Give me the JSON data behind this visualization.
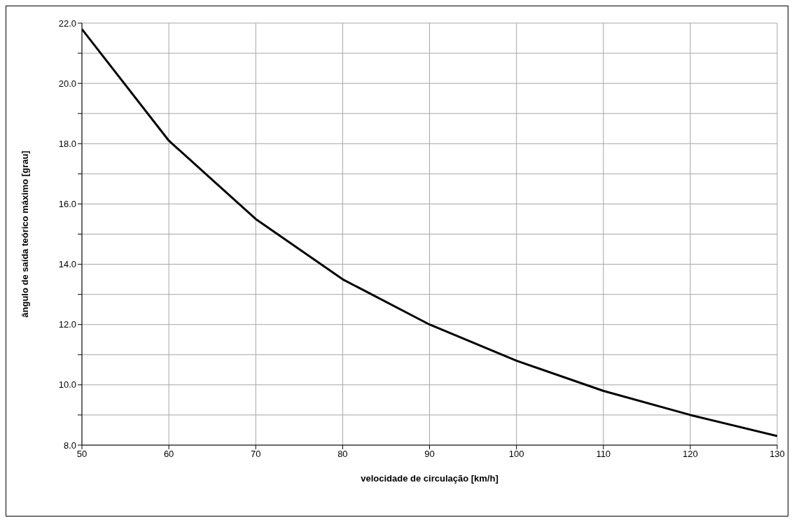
{
  "chart_data": {
    "type": "line",
    "xlabel": "velocidade de circulação [km/h]",
    "ylabel": "ângulo de saída teórico máximo [grau]",
    "x": [
      50,
      60,
      70,
      80,
      90,
      100,
      110,
      120,
      130
    ],
    "series": [
      {
        "color": "#000000",
        "values": [
          21.8,
          18.1,
          15.5,
          13.5,
          12.0,
          10.8,
          9.8,
          9.0,
          8.3
        ]
      }
    ],
    "xlim": [
      50,
      130
    ],
    "xticks": [
      50,
      60,
      70,
      80,
      90,
      100,
      110,
      120,
      130
    ],
    "ylim": [
      8,
      22
    ],
    "yticks": [
      {
        "value": 8,
        "label": "8.0"
      },
      {
        "value": 9,
        "label": null
      },
      {
        "value": 10,
        "label": "10.0"
      },
      {
        "value": 11,
        "label": null
      },
      {
        "value": 12,
        "label": "12.0"
      },
      {
        "value": 13,
        "label": null
      },
      {
        "value": 14,
        "label": "14.0"
      },
      {
        "value": 15,
        "label": null
      },
      {
        "value": 16,
        "label": "16.0"
      },
      {
        "value": 17,
        "label": null
      },
      {
        "value": 18,
        "label": "18.0"
      },
      {
        "value": 19,
        "label": null
      },
      {
        "value": 20,
        "label": "20.0"
      },
      {
        "value": 21,
        "label": null
      },
      {
        "value": 22,
        "label": "22.0"
      }
    ],
    "grid": true,
    "marker": "none",
    "line_style": "solid",
    "legend": false
  }
}
